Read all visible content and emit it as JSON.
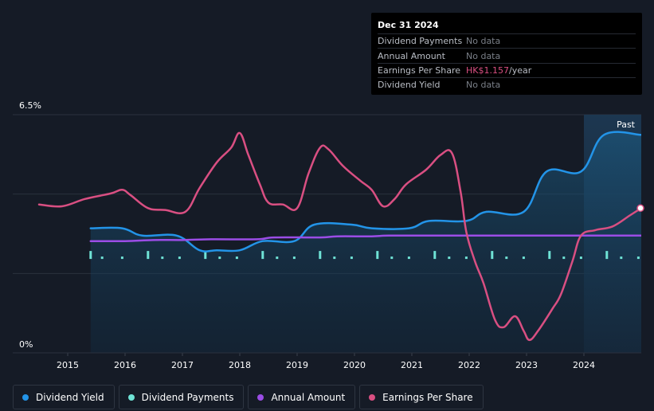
{
  "tooltip": {
    "date": "Dec 31 2024",
    "rows": [
      {
        "label": "Dividend Payments",
        "value": "No data"
      },
      {
        "label": "Annual Amount",
        "value": "No data"
      },
      {
        "label": "Earnings Per Share",
        "value": "HK$1.157",
        "unit": "/year"
      },
      {
        "label": "Dividend Yield",
        "value": "No data"
      }
    ]
  },
  "legend": [
    {
      "label": "Dividend Yield",
      "color": "#2394e8"
    },
    {
      "label": "Dividend Payments",
      "color": "#6fe3d6"
    },
    {
      "label": "Annual Amount",
      "color": "#9b4de6"
    },
    {
      "label": "Earnings Per Share",
      "color": "#d94f82"
    }
  ],
  "chart_data": {
    "type": "line",
    "title": "",
    "xlabel": "",
    "ylabel": "",
    "y_top_label": "6.5%",
    "y_bottom_label": "0%",
    "ylim": [
      0,
      6.5
    ],
    "xlim": [
      2014.5,
      2025.0
    ],
    "past_label": "Past",
    "past_start": 2024.0,
    "x_ticks": [
      2015,
      2016,
      2017,
      2018,
      2019,
      2020,
      2021,
      2022,
      2023,
      2024
    ],
    "series": [
      {
        "name": "Dividend Yield",
        "color": "#2394e8",
        "points": [
          [
            2015.4,
            3.4
          ],
          [
            2015.95,
            3.4
          ],
          [
            2016.3,
            3.2
          ],
          [
            2016.9,
            3.2
          ],
          [
            2017.3,
            2.8
          ],
          [
            2017.6,
            2.8
          ],
          [
            2018.0,
            2.8
          ],
          [
            2018.4,
            3.05
          ],
          [
            2018.95,
            3.05
          ],
          [
            2019.3,
            3.5
          ],
          [
            2019.95,
            3.5
          ],
          [
            2020.3,
            3.4
          ],
          [
            2020.95,
            3.4
          ],
          [
            2021.3,
            3.6
          ],
          [
            2021.95,
            3.6
          ],
          [
            2022.3,
            3.85
          ],
          [
            2022.95,
            3.85
          ],
          [
            2023.35,
            4.95
          ],
          [
            2023.95,
            4.95
          ],
          [
            2024.35,
            5.95
          ],
          [
            2025.0,
            5.95
          ]
        ]
      },
      {
        "name": "Annual Amount",
        "color": "#9b4de6",
        "points": [
          [
            2015.4,
            3.05
          ],
          [
            2016.0,
            3.05
          ],
          [
            2016.5,
            3.08
          ],
          [
            2017.0,
            3.08
          ],
          [
            2017.5,
            3.1
          ],
          [
            2018.3,
            3.1
          ],
          [
            2018.6,
            3.15
          ],
          [
            2019.4,
            3.15
          ],
          [
            2019.7,
            3.18
          ],
          [
            2020.3,
            3.18
          ],
          [
            2020.6,
            3.2
          ],
          [
            2021.3,
            3.2
          ],
          [
            2021.6,
            3.2
          ],
          [
            2025.0,
            3.2
          ]
        ]
      },
      {
        "name": "Earnings Per Share",
        "color": "#d94f82",
        "points": [
          [
            2014.5,
            4.05
          ],
          [
            2014.9,
            4.0
          ],
          [
            2015.3,
            4.2
          ],
          [
            2015.75,
            4.35
          ],
          [
            2015.95,
            4.45
          ],
          [
            2016.1,
            4.3
          ],
          [
            2016.4,
            3.95
          ],
          [
            2016.7,
            3.9
          ],
          [
            2017.05,
            3.85
          ],
          [
            2017.3,
            4.5
          ],
          [
            2017.6,
            5.2
          ],
          [
            2017.85,
            5.6
          ],
          [
            2018.0,
            6.0
          ],
          [
            2018.15,
            5.4
          ],
          [
            2018.35,
            4.6
          ],
          [
            2018.5,
            4.1
          ],
          [
            2018.75,
            4.05
          ],
          [
            2019.0,
            3.95
          ],
          [
            2019.2,
            4.9
          ],
          [
            2019.4,
            5.6
          ],
          [
            2019.55,
            5.55
          ],
          [
            2019.8,
            5.1
          ],
          [
            2020.1,
            4.7
          ],
          [
            2020.3,
            4.45
          ],
          [
            2020.5,
            4.0
          ],
          [
            2020.7,
            4.2
          ],
          [
            2020.9,
            4.6
          ],
          [
            2021.25,
            5.0
          ],
          [
            2021.5,
            5.4
          ],
          [
            2021.7,
            5.45
          ],
          [
            2021.85,
            4.4
          ],
          [
            2021.95,
            3.3
          ],
          [
            2022.1,
            2.5
          ],
          [
            2022.25,
            1.9
          ],
          [
            2022.45,
            0.9
          ],
          [
            2022.6,
            0.7
          ],
          [
            2022.8,
            1.0
          ],
          [
            2022.95,
            0.6
          ],
          [
            2023.05,
            0.35
          ],
          [
            2023.2,
            0.6
          ],
          [
            2023.45,
            1.2
          ],
          [
            2023.6,
            1.6
          ],
          [
            2023.8,
            2.5
          ],
          [
            2023.95,
            3.2
          ],
          [
            2024.2,
            3.35
          ],
          [
            2024.5,
            3.45
          ],
          [
            2024.8,
            3.75
          ],
          [
            2025.0,
            3.95
          ]
        ]
      }
    ],
    "dividend_payments": {
      "name": "Dividend Payments",
      "color": "#6fe3d6",
      "tall_bars": [
        2015.4,
        2016.4,
        2017.4,
        2018.4,
        2019.4,
        2020.4,
        2021.4,
        2022.4,
        2023.4,
        2024.4
      ],
      "small_marks": [
        2015.6,
        2015.95,
        2016.65,
        2016.95,
        2017.65,
        2017.95,
        2018.65,
        2018.95,
        2019.65,
        2019.95,
        2020.65,
        2020.95,
        2021.65,
        2021.95,
        2022.65,
        2022.95,
        2023.65,
        2023.95,
        2024.65,
        2024.95
      ],
      "level": 2.65
    }
  }
}
